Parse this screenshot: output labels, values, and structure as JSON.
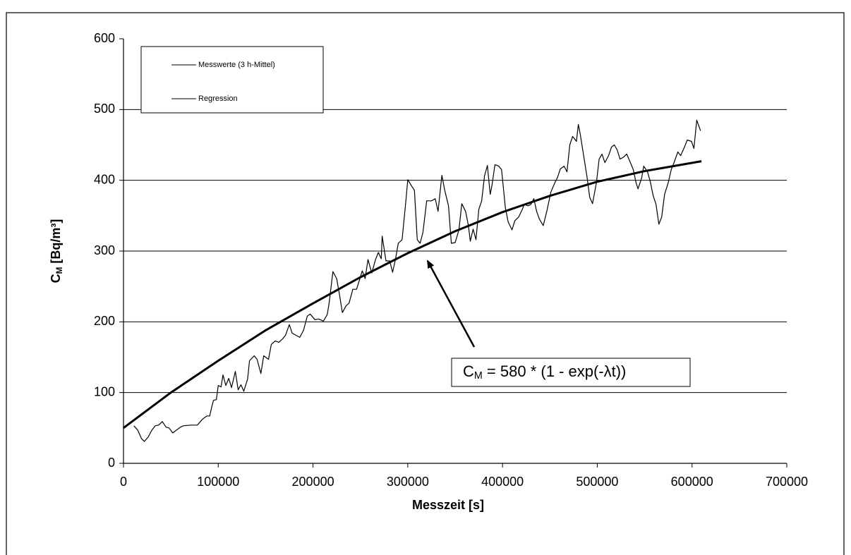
{
  "chart_data": {
    "type": "line",
    "x_label": "Messzeit [s]",
    "y_label": {
      "main": "C",
      "sub": "M",
      "rest": " [Bq/m³]"
    },
    "annotation": {
      "main": "C",
      "sub": "M",
      "rest": " = 580 * (1 - exp(-λt))"
    },
    "xlim": [
      0,
      700000
    ],
    "xticks": [
      0,
      100000,
      200000,
      300000,
      400000,
      500000,
      600000,
      700000
    ],
    "ylim": [
      0,
      600
    ],
    "yticks": [
      0,
      100,
      200,
      300,
      400,
      500,
      600
    ],
    "grid": true,
    "legend": "upper left",
    "series": [
      {
        "name": "Messwerte (3 h-Mittel)",
        "color": "#000000",
        "line_width": 1.2,
        "x": [
          11000,
          15000,
          19000,
          22000,
          26000,
          30000,
          33500,
          37000,
          41000,
          45000,
          48000,
          52000,
          56000,
          60000,
          63000,
          71000,
          78000,
          83000,
          88000,
          91000,
          93000,
          95000,
          98000,
          100000,
          103000,
          105000,
          108000,
          111000,
          114000,
          118000,
          121000,
          124000,
          127000,
          131000,
          133000,
          138000,
          141000,
          145000,
          148000,
          153000,
          156000,
          160000,
          164000,
          168000,
          171000,
          175000,
          178000,
          182000,
          186000,
          190000,
          194000,
          197000,
          202000,
          206000,
          211000,
          215000,
          217000,
          221000,
          225000,
          228000,
          231000,
          235000,
          238000,
          242000,
          246000,
          249000,
          252000,
          255000,
          258000,
          262000,
          266000,
          269000,
          272000,
          273000,
          277000,
          281000,
          284000,
          287000,
          290000,
          294000,
          298000,
          300000,
          304000,
          307000,
          310000,
          313000,
          316000,
          320000,
          325000,
          329000,
          332000,
          336000,
          339000,
          343000,
          346000,
          350000,
          354000,
          357000,
          361000,
          364000,
          366000,
          369000,
          372000,
          375000,
          378000,
          381000,
          384000,
          387000,
          389000,
          392000,
          396000,
          399000,
          403000,
          406000,
          410000,
          413000,
          417000,
          421000,
          423000,
          427000,
          430000,
          433000,
          436000,
          439000,
          443000,
          447000,
          451000,
          455000,
          458000,
          461000,
          465000,
          468000,
          471000,
          474000,
          478000,
          480000,
          482000,
          485000,
          489000,
          492000,
          495000,
          499000,
          502000,
          505000,
          508000,
          512000,
          515000,
          518000,
          521000,
          524000,
          528000,
          531000,
          535000,
          538000,
          541000,
          543000,
          547000,
          549000,
          553000,
          556000,
          559000,
          562000,
          565000,
          568000,
          571000,
          575000,
          578000,
          581000,
          585000,
          588000,
          592000,
          595000,
          599500,
          602000,
          605000,
          609000
        ],
        "values": [
          53,
          47,
          35,
          31,
          37,
          47,
          53,
          54,
          59,
          51,
          50,
          43,
          47,
          51,
          53,
          54,
          54,
          62,
          67,
          67,
          79,
          89,
          90,
          110,
          108,
          125,
          110,
          120,
          107,
          130,
          104,
          111,
          102,
          119,
          145,
          152,
          147,
          127,
          152,
          147,
          168,
          173,
          171,
          176,
          181,
          196,
          184,
          181,
          178,
          188,
          208,
          211,
          203,
          204,
          201,
          210,
          226,
          271,
          261,
          238,
          213,
          223,
          226,
          246,
          246,
          259,
          272,
          261,
          288,
          269,
          288,
          298,
          289,
          321,
          286,
          286,
          270,
          288,
          311,
          316,
          371,
          401,
          392,
          386,
          316,
          311,
          326,
          371,
          371,
          374,
          356,
          407,
          386,
          364,
          311,
          312,
          330,
          367,
          356,
          336,
          314,
          331,
          316,
          359,
          371,
          406,
          421,
          380,
          394,
          422,
          420,
          415,
          361,
          341,
          330,
          343,
          348,
          359,
          366,
          364,
          366,
          374,
          356,
          345,
          336,
          358,
          383,
          396,
          404,
          416,
          420,
          412,
          450,
          462,
          455,
          479,
          465,
          440,
          406,
          376,
          367,
          396,
          430,
          437,
          425,
          435,
          447,
          450,
          443,
          430,
          433,
          437,
          425,
          415,
          396,
          388,
          404,
          420,
          412,
          398,
          378,
          366,
          338,
          348,
          380,
          397,
          415,
          425,
          440,
          435,
          447,
          457,
          455,
          445,
          485,
          470
        ]
      },
      {
        "name": "Regression",
        "color": "#000000",
        "line_width": 3,
        "x": [
          0,
          50000,
          100000,
          150000,
          200000,
          250000,
          300000,
          350000,
          400000,
          450000,
          500000,
          550000,
          610000
        ],
        "values": [
          50,
          100,
          145,
          188,
          226,
          263,
          297,
          328,
          355,
          378,
          398,
          413,
          427
        ]
      }
    ]
  }
}
